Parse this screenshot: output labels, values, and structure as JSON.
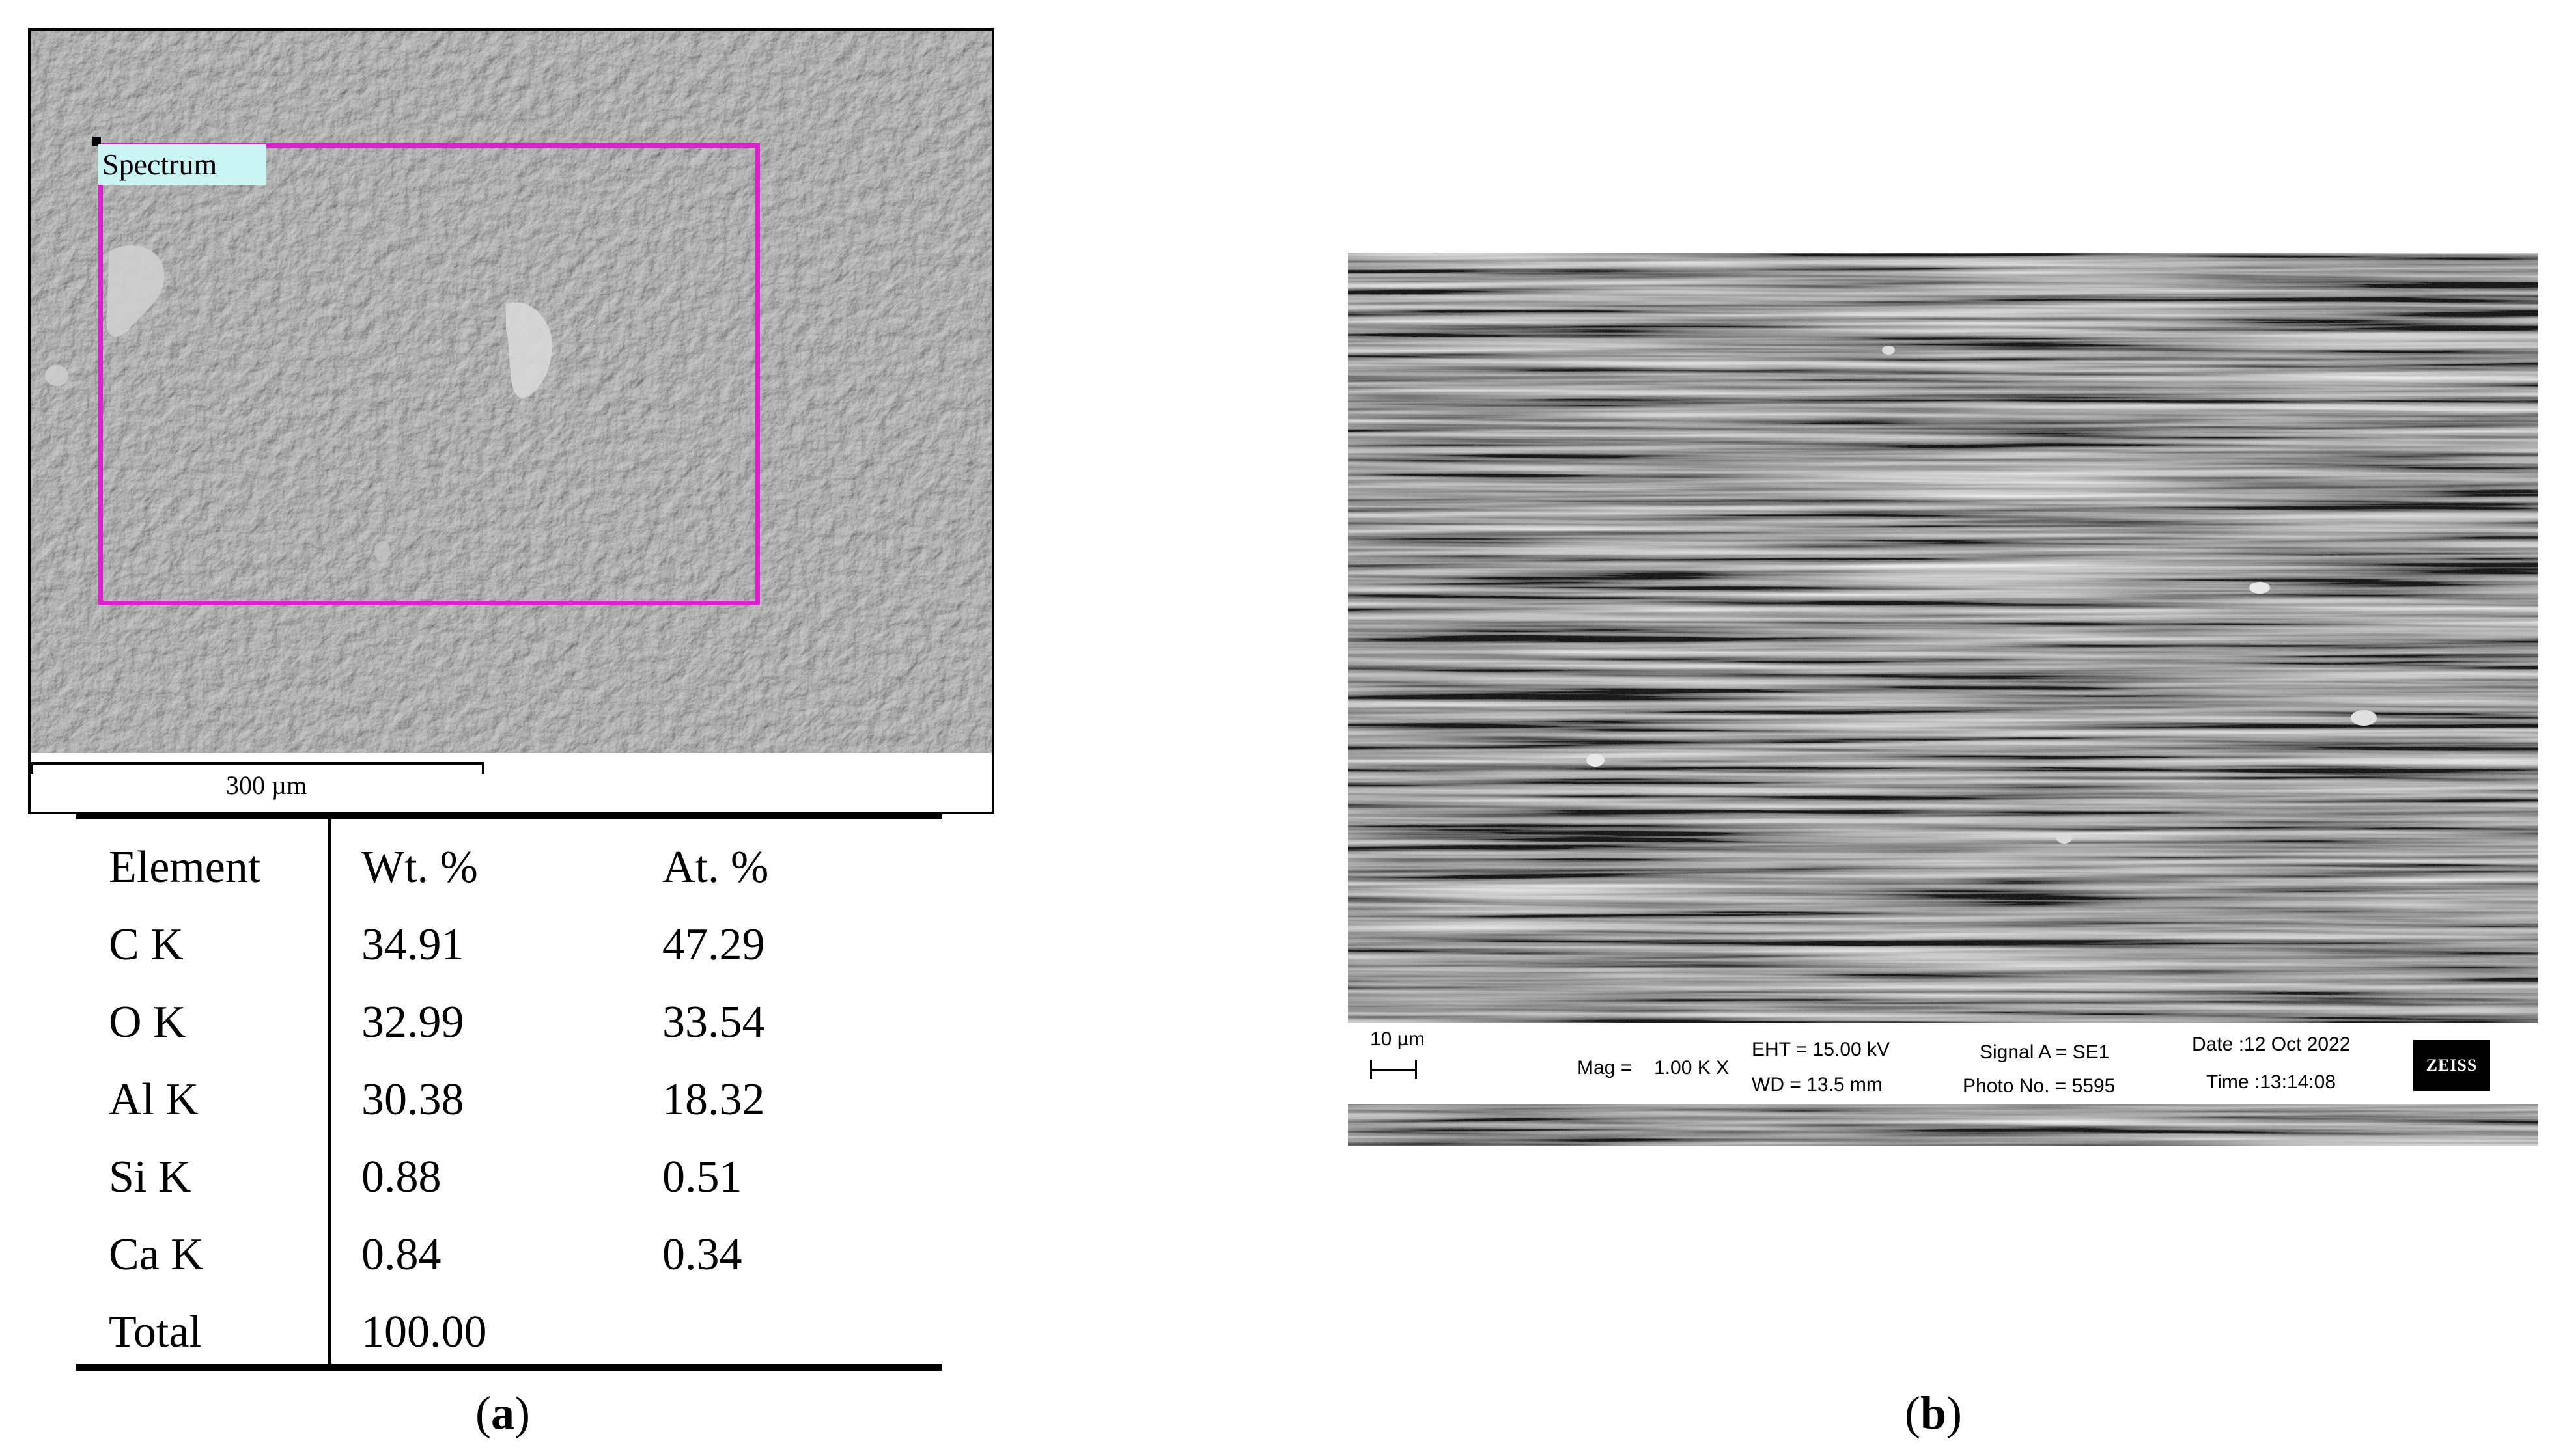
{
  "panel_a": {
    "spectrum_label": "Spectrum",
    "scale_bar_label": "300 µm",
    "spectrum_box_color": "#e020d0"
  },
  "eds_table": {
    "headers": [
      "Element",
      "Wt. %",
      "At. %"
    ],
    "rows": [
      [
        "C K",
        "34.91",
        "47.29"
      ],
      [
        "O K",
        "32.99",
        "33.54"
      ],
      [
        "Al K",
        "30.38",
        "18.32"
      ],
      [
        "Si K",
        "0.88",
        "0.51"
      ],
      [
        "Ca K",
        "0.84",
        "0.34"
      ],
      [
        "Total",
        "100.00",
        ""
      ]
    ]
  },
  "captions": {
    "a_letter": "a",
    "b_letter": "b"
  },
  "panel_b": {
    "scale_bar_label": "10 µm",
    "mag_label": "Mag =",
    "mag_value": "1.00 K X",
    "eht": "EHT = 15.00 kV",
    "wd": "WD = 13.5 mm",
    "signal": "Signal A = SE1",
    "photo": "Photo No. = 5595",
    "date": "Date :12 Oct 2022",
    "time": "Time :13:14:08",
    "logo_text": "ZEISS"
  }
}
